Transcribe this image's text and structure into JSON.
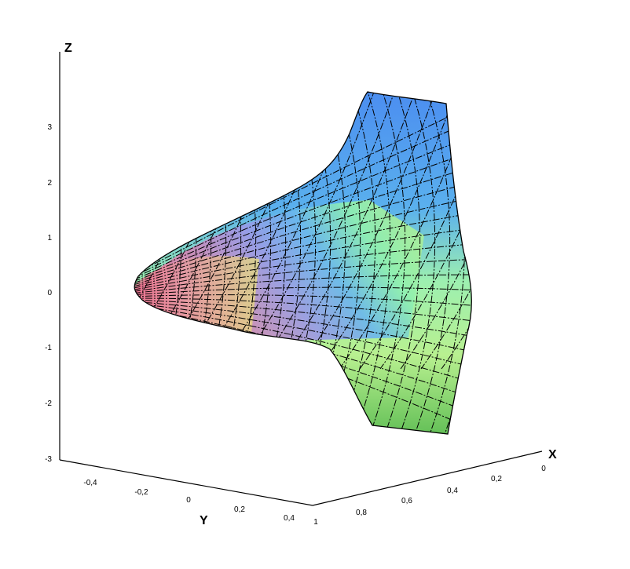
{
  "chart_data": {
    "type": "surface",
    "axes": {
      "x": {
        "name": "X",
        "ticks": [
          "0",
          "0,2",
          "0,4",
          "0,6",
          "0,8",
          "1"
        ],
        "range": [
          0,
          1
        ]
      },
      "y": {
        "name": "Y",
        "ticks": [
          "-0,4",
          "-0,2",
          "0",
          "0,2",
          "0,4"
        ],
        "range": [
          -0.5,
          0.4
        ]
      },
      "z": {
        "name": "Z",
        "ticks": [
          "3",
          "2",
          "1",
          "0",
          "-1",
          "-2",
          "-3"
        ],
        "range": [
          -3,
          3.5
        ]
      }
    },
    "surface": {
      "z_top": 3.6,
      "z_bottom": -2.6,
      "colormap": [
        "#f07a9a",
        "#b07ac8",
        "#6a8ee8",
        "#4aa8f0",
        "#9df0a8",
        "#c7f08a",
        "#5fbf5a"
      ]
    }
  }
}
